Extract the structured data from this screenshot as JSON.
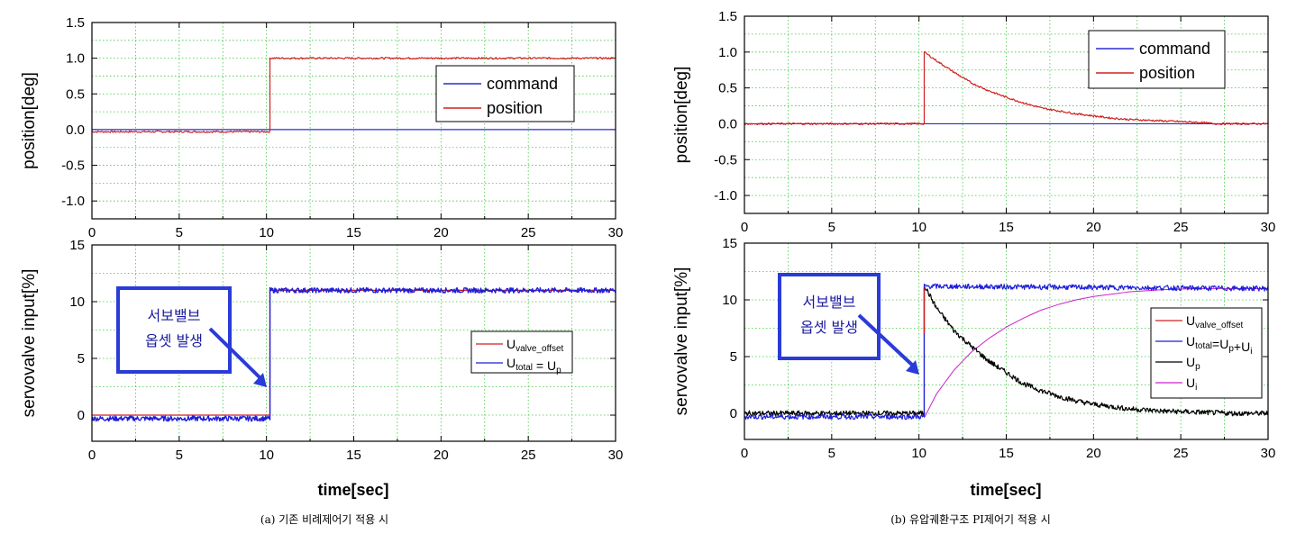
{
  "panels": [
    {
      "caption": "(a) 기존 비례제어기 적용 시",
      "top_plot": {
        "ylabel": "position[deg]",
        "xlim": [
          0,
          30
        ],
        "ylim": [
          -1.25,
          1.5
        ],
        "xticks": [
          "0",
          "5",
          "10",
          "15",
          "20",
          "25",
          "30"
        ],
        "yticks": [
          "1.5",
          "1.0",
          "0.5",
          "0.0",
          "-0.5",
          "-1.0"
        ],
        "legend": [
          "command",
          "position"
        ]
      },
      "bottom_plot": {
        "ylabel": "servovalve input[%]",
        "xlabel": "",
        "xlim": [
          0,
          30
        ],
        "ylim": [
          -2.3,
          15
        ],
        "xticks": [
          "0",
          "5",
          "10",
          "15",
          "20",
          "25",
          "30"
        ],
        "yticks": [
          "15",
          "10",
          "5",
          "0"
        ],
        "legend": [
          {
            "main": "U",
            "sub": "valve_offset",
            "rest": ""
          },
          {
            "main": "U",
            "sub": "total",
            "rest": " = U",
            "sub2": "p"
          }
        ]
      },
      "annotation": [
        "서보밸브",
        "옵셋 발생"
      ]
    },
    {
      "caption": "(b) 유압궤환구조 PI제어기 적용 시",
      "top_plot": {
        "ylabel": "position[deg]",
        "xlim": [
          0,
          30
        ],
        "ylim": [
          -1.25,
          1.5
        ],
        "xticks": [
          "0",
          "5",
          "10",
          "15",
          "20",
          "25",
          "30"
        ],
        "yticks": [
          "1.5",
          "1.0",
          "0.5",
          "0.0",
          "-0.5",
          "-1.0"
        ],
        "legend": [
          "command",
          "position"
        ]
      },
      "bottom_plot": {
        "ylabel": "servovalve input[%]",
        "xlabel": "time[sec]",
        "xlim": [
          0,
          30
        ],
        "ylim": [
          -2.3,
          15
        ],
        "xticks": [
          "0",
          "5",
          "10",
          "15",
          "20",
          "25",
          "30"
        ],
        "yticks": [
          "15",
          "10",
          "5",
          "0"
        ],
        "legend": [
          {
            "main": "U",
            "sub": "valve_offset",
            "rest": ""
          },
          {
            "main": "U",
            "sub": "total",
            "rest": "=U",
            "sub2": "p",
            "rest2": "+U",
            "sub3": "i"
          },
          {
            "main": "U",
            "sub": "p",
            "rest": ""
          },
          {
            "main": "U",
            "sub": "i",
            "rest": ""
          }
        ]
      },
      "annotation": [
        "서보밸브",
        "옵셋 발생"
      ]
    }
  ],
  "shared_xlabel": "time[sec]",
  "colors": {
    "command": "#2b2bd0",
    "position": "#d02020",
    "u_valve_offset": "#d02020",
    "u_total": "#1f1fd8",
    "u_p": "#000000",
    "u_i": "#cc22cc",
    "annotation": "#2a3bd8",
    "grid": "#3cc83c"
  },
  "chart_data": [
    {
      "type": "line",
      "title": "",
      "xlabel": "",
      "ylabel": "position[deg]",
      "xlim": [
        0,
        30
      ],
      "ylim": [
        -1.25,
        1.5
      ],
      "grid": true,
      "legend_position": "upper-right",
      "series": [
        {
          "name": "command",
          "x": [
            0,
            10.2,
            10.2,
            30
          ],
          "y": [
            0,
            0,
            0,
            0
          ]
        },
        {
          "name": "position",
          "x": [
            0,
            10.2,
            10.2,
            30
          ],
          "y": [
            -0.03,
            -0.03,
            1.0,
            1.0
          ]
        }
      ]
    },
    {
      "type": "line",
      "title": "",
      "xlabel": "time[sec]",
      "ylabel": "servovalve input[%]",
      "xlim": [
        0,
        30
      ],
      "ylim": [
        -2.3,
        15
      ],
      "grid": true,
      "legend_position": "right",
      "series": [
        {
          "name": "U_valve_offset",
          "x": [
            0,
            10.2,
            10.2,
            30
          ],
          "y": [
            0,
            0,
            11,
            11
          ]
        },
        {
          "name": "U_total = U_p",
          "x": [
            0,
            10.2,
            10.2,
            30
          ],
          "y": [
            -0.3,
            -0.3,
            11.0,
            11.0
          ]
        }
      ]
    },
    {
      "type": "line",
      "title": "",
      "xlabel": "",
      "ylabel": "position[deg]",
      "xlim": [
        0,
        30
      ],
      "ylim": [
        -1.25,
        1.5
      ],
      "grid": true,
      "legend_position": "upper-right",
      "series": [
        {
          "name": "command",
          "x": [
            0,
            30
          ],
          "y": [
            0,
            0
          ]
        },
        {
          "name": "position",
          "x": [
            0,
            10.3,
            10.3,
            11,
            12,
            13,
            14,
            15,
            16,
            17,
            18,
            19,
            20,
            21,
            22,
            23,
            24,
            25,
            26,
            27,
            30
          ],
          "y": [
            0,
            0,
            1.0,
            0.88,
            0.72,
            0.57,
            0.46,
            0.37,
            0.29,
            0.22,
            0.18,
            0.14,
            0.11,
            0.08,
            0.06,
            0.05,
            0.04,
            0.03,
            0.02,
            0.0,
            0.0
          ]
        }
      ]
    },
    {
      "type": "line",
      "title": "",
      "xlabel": "time[sec]",
      "ylabel": "servovalve input[%]",
      "xlim": [
        0,
        30
      ],
      "ylim": [
        -2.3,
        15
      ],
      "grid": true,
      "legend_position": "right",
      "series": [
        {
          "name": "U_valve_offset",
          "x": [
            10.3,
            10.3
          ],
          "y": [
            7,
            11
          ]
        },
        {
          "name": "U_total=U_p+U_i",
          "x": [
            0,
            10.3,
            10.3,
            30
          ],
          "y": [
            -0.3,
            -0.3,
            11.2,
            11.0
          ]
        },
        {
          "name": "U_p",
          "x": [
            0,
            10.3,
            10.3,
            11,
            12,
            13,
            14,
            15,
            16,
            17,
            18,
            19,
            20,
            21,
            22,
            23,
            24,
            25,
            26,
            27,
            28,
            30
          ],
          "y": [
            0,
            0,
            11.3,
            9.3,
            7.3,
            5.9,
            4.6,
            3.6,
            2.6,
            2.0,
            1.5,
            1.1,
            0.8,
            0.6,
            0.4,
            0.3,
            0.2,
            0.15,
            0.1,
            0.05,
            0.0,
            0.0
          ]
        },
        {
          "name": "U_i",
          "x": [
            10.3,
            11,
            12,
            13,
            14,
            15,
            16,
            17,
            18,
            19,
            20,
            22,
            24,
            26,
            28,
            30
          ],
          "y": [
            -0.4,
            1.7,
            3.8,
            5.4,
            6.6,
            7.6,
            8.4,
            9.1,
            9.6,
            10.0,
            10.3,
            10.7,
            10.9,
            11.0,
            11.0,
            11.0
          ]
        }
      ]
    }
  ]
}
